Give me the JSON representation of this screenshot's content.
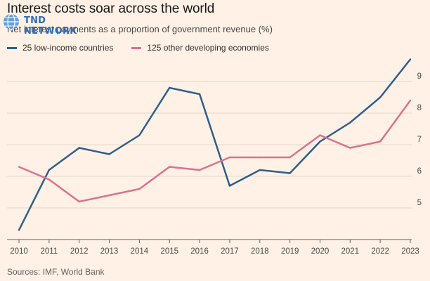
{
  "header": {
    "title": "Interest costs soar across the world",
    "subtitle": "Net interest payments as a proportion of government revenue (%)",
    "watermark": "TND NETWORK"
  },
  "footer": {
    "source": "Sources: IMF, World Bank"
  },
  "chart_data": {
    "type": "line",
    "title": "Interest costs soar across the world",
    "subtitle": "Net interest payments as a proportion of government revenue (%)",
    "xlabel": "",
    "ylabel": "",
    "x": [
      2010,
      2011,
      2012,
      2013,
      2014,
      2015,
      2016,
      2017,
      2018,
      2019,
      2020,
      2021,
      2022,
      2023
    ],
    "ylim": [
      4,
      9.8
    ],
    "yticks": [
      5,
      6,
      7,
      8,
      9
    ],
    "grid": true,
    "legend_position": "top-left",
    "series": [
      {
        "name": "25 low-income countries",
        "color": "#2e5e8c",
        "values": [
          4.3,
          6.2,
          6.9,
          6.7,
          7.3,
          8.8,
          8.6,
          5.7,
          6.2,
          6.1,
          7.1,
          7.7,
          8.5,
          9.7
        ]
      },
      {
        "name": "125 other developing economies",
        "color": "#d9728e",
        "values": [
          6.3,
          5.9,
          5.2,
          5.4,
          5.6,
          6.3,
          6.2,
          6.6,
          6.6,
          6.6,
          7.3,
          6.9,
          7.1,
          8.4
        ]
      }
    ]
  }
}
